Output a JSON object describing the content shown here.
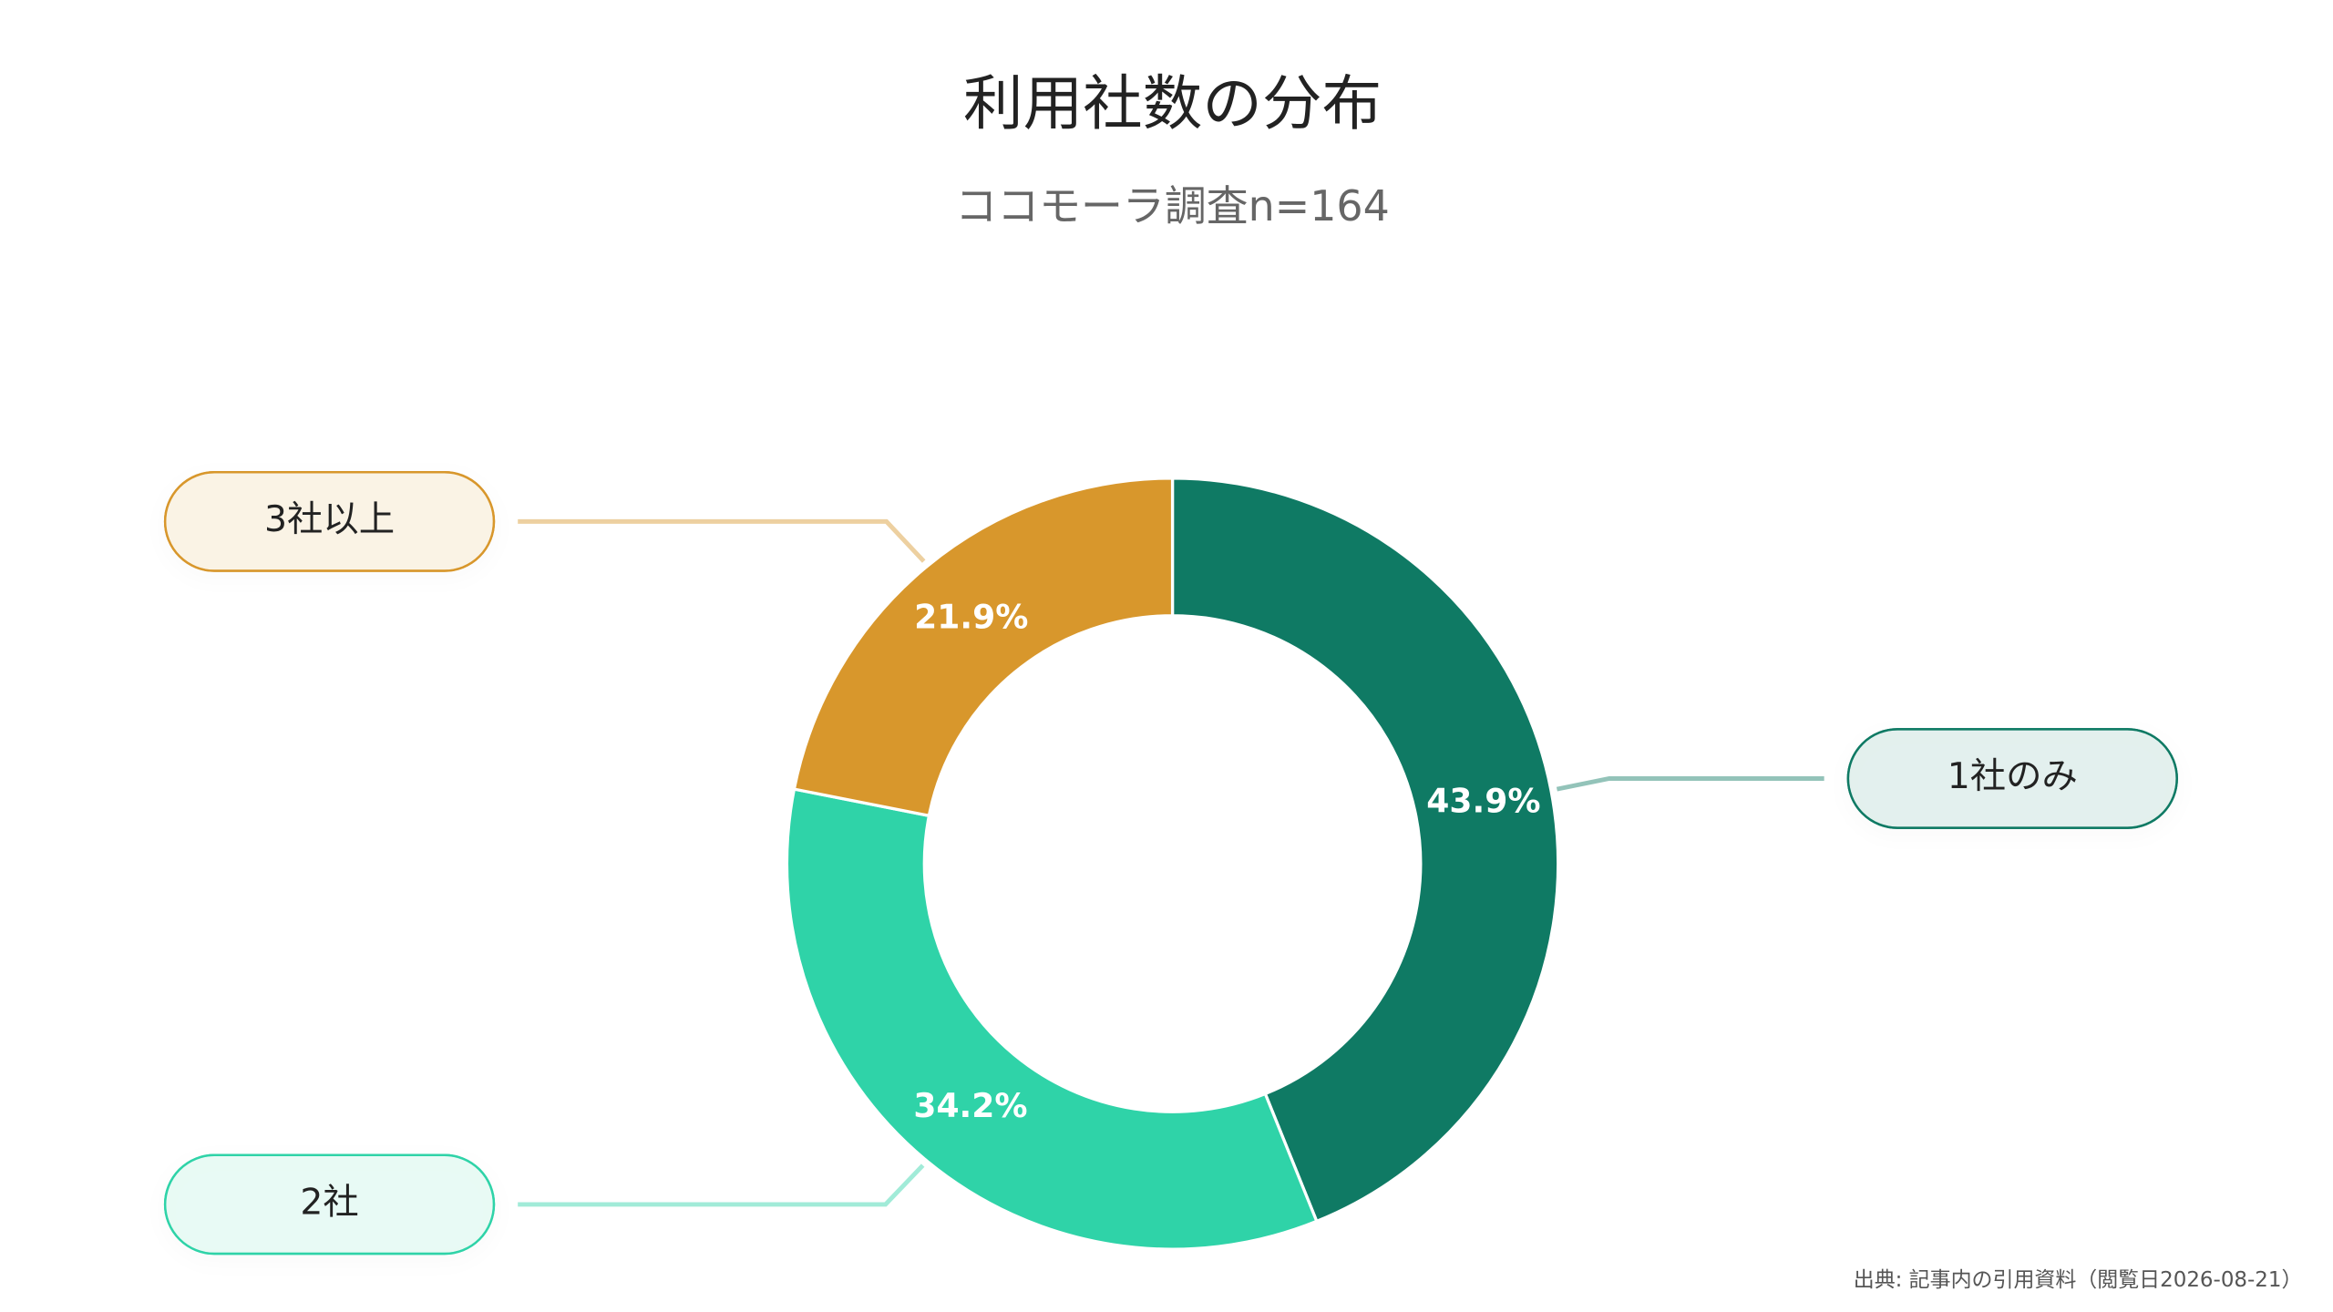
{
  "chart_data": {
    "type": "donut",
    "title": "利用社数の分布",
    "subtitle": "ココモーラ調査n=164",
    "categories": [
      "1社のみ",
      "2社",
      "3社以上"
    ],
    "values": [
      43.9,
      34.2,
      21.9
    ],
    "value_labels": [
      "43.9%",
      "34.2%",
      "21.9%"
    ],
    "colors": [
      "#0f7a64",
      "#2fd3a8",
      "#d8972c"
    ],
    "source": "出典: 記事内の引用資料（閲覧日2026-08-21）"
  }
}
